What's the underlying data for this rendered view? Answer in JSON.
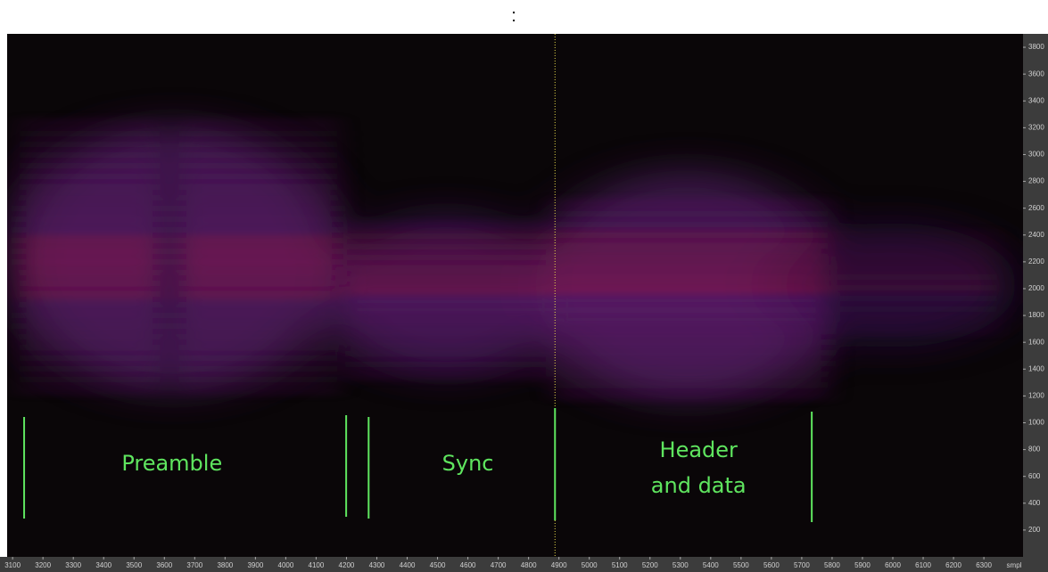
{
  "chart_data": {
    "type": "spectrogram",
    "title": ":",
    "x_unit": "smpl",
    "xlim": [
      3082,
      6429
    ],
    "xticks": [
      3100,
      3200,
      3300,
      3400,
      3500,
      3600,
      3700,
      3800,
      3900,
      4000,
      4100,
      4200,
      4300,
      4400,
      4500,
      4600,
      4700,
      4800,
      4900,
      5000,
      5100,
      5200,
      5300,
      5400,
      5500,
      5600,
      5700,
      5800,
      5900,
      6000,
      6100,
      6200,
      6300
    ],
    "ylim": [
      0,
      3900
    ],
    "yticks": [
      200,
      400,
      600,
      800,
      1000,
      1200,
      1400,
      1600,
      1800,
      2000,
      2200,
      2400,
      2600,
      2800,
      3000,
      3200,
      3400,
      3600,
      3800
    ],
    "cursor": 4887,
    "markers": [
      3138,
      4199,
      4273,
      4887,
      5733
    ],
    "annotations": [
      {
        "text": "Preamble",
        "x": 3625
      },
      {
        "text": "Sync",
        "x": 4600
      },
      {
        "text": "Header",
        "x": 5360
      },
      {
        "text": "and data",
        "x": 5360
      }
    ]
  }
}
